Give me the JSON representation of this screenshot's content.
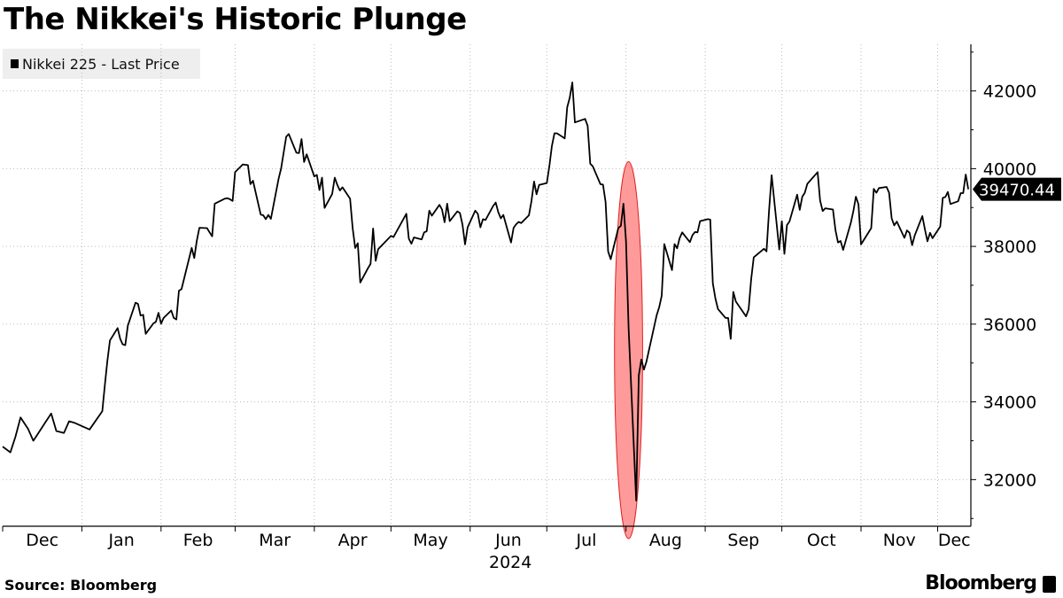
{
  "header": {
    "title": "The Nikkei's Historic Plunge"
  },
  "footer": {
    "source": "Source: Bloomberg",
    "brand": "Bloomberg"
  },
  "colors": {
    "line": "#000000",
    "highlight_fill": "#ff9a9a",
    "highlight_stroke": "#e02020",
    "grid": "#bbbbbb"
  },
  "icons": {
    "brand": "bloomberg-terminal-icon"
  },
  "chart_data": {
    "type": "line",
    "title": "The Nikkei's Historic Plunge",
    "xlabel": "2024",
    "ylabel": "",
    "ylim": [
      30800,
      43200
    ],
    "yticks": [
      32000,
      34000,
      36000,
      38000,
      40000,
      42000
    ],
    "ytick_labels": [
      "32000",
      "34000",
      "36000",
      "38000",
      "40000",
      "42000"
    ],
    "xticks": [
      {
        "label": "Dec",
        "date": "2023-12-01"
      },
      {
        "label": "Jan",
        "date": "2024-01-01"
      },
      {
        "label": "Feb",
        "date": "2024-02-01"
      },
      {
        "label": "Mar",
        "date": "2024-03-01"
      },
      {
        "label": "Apr",
        "date": "2024-04-01"
      },
      {
        "label": "May",
        "date": "2024-05-01"
      },
      {
        "label": "Jun",
        "date": "2024-06-01"
      },
      {
        "label": "Jul",
        "date": "2024-07-01"
      },
      {
        "label": "Aug",
        "date": "2024-08-01"
      },
      {
        "label": "Sep",
        "date": "2024-09-01"
      },
      {
        "label": "Oct",
        "date": "2024-10-01"
      },
      {
        "label": "Nov",
        "date": "2024-11-01"
      },
      {
        "label": "Dec",
        "date": "2024-12-01"
      }
    ],
    "xlim": [
      "2023-12-01",
      "2024-12-14"
    ],
    "grid": true,
    "legend_position": "top-left",
    "series": [
      {
        "name": "Nikkei 225 - Last Price",
        "last_value_label": "39470.44",
        "points": [
          [
            "2023-12-01",
            32850
          ],
          [
            "2023-12-04",
            32700
          ],
          [
            "2023-12-06",
            33100
          ],
          [
            "2023-12-08",
            33600
          ],
          [
            "2023-12-11",
            33300
          ],
          [
            "2023-12-13",
            33000
          ],
          [
            "2023-12-15",
            33200
          ],
          [
            "2023-12-18",
            33500
          ],
          [
            "2023-12-20",
            33700
          ],
          [
            "2023-12-22",
            33250
          ],
          [
            "2023-12-25",
            33200
          ],
          [
            "2023-12-27",
            33500
          ],
          [
            "2023-12-29",
            33464
          ],
          [
            "2024-01-04",
            33290
          ],
          [
            "2024-01-05",
            33380
          ],
          [
            "2024-01-09",
            33760
          ],
          [
            "2024-01-10",
            34440
          ],
          [
            "2024-01-11",
            35050
          ],
          [
            "2024-01-12",
            35580
          ],
          [
            "2024-01-15",
            35900
          ],
          [
            "2024-01-16",
            35620
          ],
          [
            "2024-01-17",
            35480
          ],
          [
            "2024-01-18",
            35460
          ],
          [
            "2024-01-19",
            35960
          ],
          [
            "2024-01-22",
            36550
          ],
          [
            "2024-01-23",
            36520
          ],
          [
            "2024-01-24",
            36220
          ],
          [
            "2024-01-25",
            36240
          ],
          [
            "2024-01-26",
            35750
          ],
          [
            "2024-01-29",
            36020
          ],
          [
            "2024-01-30",
            36060
          ],
          [
            "2024-01-31",
            36290
          ],
          [
            "2024-02-01",
            36010
          ],
          [
            "2024-02-02",
            36160
          ],
          [
            "2024-02-05",
            36350
          ],
          [
            "2024-02-06",
            36160
          ],
          [
            "2024-02-07",
            36120
          ],
          [
            "2024-02-08",
            36860
          ],
          [
            "2024-02-09",
            36900
          ],
          [
            "2024-02-13",
            37960
          ],
          [
            "2024-02-14",
            37700
          ],
          [
            "2024-02-15",
            38150
          ],
          [
            "2024-02-16",
            38480
          ],
          [
            "2024-02-19",
            38470
          ],
          [
            "2024-02-20",
            38360
          ],
          [
            "2024-02-21",
            38260
          ],
          [
            "2024-02-22",
            39100
          ],
          [
            "2024-02-26",
            39230
          ],
          [
            "2024-02-27",
            39240
          ],
          [
            "2024-02-28",
            39210
          ],
          [
            "2024-02-29",
            39170
          ],
          [
            "2024-03-01",
            39910
          ],
          [
            "2024-03-04",
            40110
          ],
          [
            "2024-03-05",
            40100
          ],
          [
            "2024-03-06",
            40090
          ],
          [
            "2024-03-07",
            39600
          ],
          [
            "2024-03-08",
            39690
          ],
          [
            "2024-03-11",
            38820
          ],
          [
            "2024-03-12",
            38800
          ],
          [
            "2024-03-13",
            38700
          ],
          [
            "2024-03-14",
            38810
          ],
          [
            "2024-03-15",
            38710
          ],
          [
            "2024-03-18",
            39740
          ],
          [
            "2024-03-19",
            40000
          ],
          [
            "2024-03-21",
            40820
          ],
          [
            "2024-03-22",
            40890
          ],
          [
            "2024-03-25",
            40410
          ],
          [
            "2024-03-26",
            40400
          ],
          [
            "2024-03-27",
            40760
          ],
          [
            "2024-03-28",
            40170
          ],
          [
            "2024-03-29",
            40370
          ],
          [
            "2024-04-01",
            39800
          ],
          [
            "2024-04-02",
            39840
          ],
          [
            "2024-04-03",
            39450
          ],
          [
            "2024-04-04",
            39770
          ],
          [
            "2024-04-05",
            38990
          ],
          [
            "2024-04-08",
            39350
          ],
          [
            "2024-04-09",
            39770
          ],
          [
            "2024-04-10",
            39580
          ],
          [
            "2024-04-11",
            39440
          ],
          [
            "2024-04-12",
            39520
          ],
          [
            "2024-04-15",
            39230
          ],
          [
            "2024-04-16",
            38470
          ],
          [
            "2024-04-17",
            37960
          ],
          [
            "2024-04-18",
            38080
          ],
          [
            "2024-04-19",
            37070
          ],
          [
            "2024-04-22",
            37440
          ],
          [
            "2024-04-23",
            37550
          ],
          [
            "2024-04-24",
            38460
          ],
          [
            "2024-04-25",
            37630
          ],
          [
            "2024-04-26",
            37930
          ],
          [
            "2024-05-01",
            38270
          ],
          [
            "2024-05-02",
            38240
          ],
          [
            "2024-05-07",
            38840
          ],
          [
            "2024-05-08",
            38200
          ],
          [
            "2024-05-09",
            38070
          ],
          [
            "2024-05-10",
            38230
          ],
          [
            "2024-05-13",
            38180
          ],
          [
            "2024-05-14",
            38360
          ],
          [
            "2024-05-15",
            38390
          ],
          [
            "2024-05-16",
            38920
          ],
          [
            "2024-05-17",
            38790
          ],
          [
            "2024-05-20",
            39070
          ],
          [
            "2024-05-21",
            38950
          ],
          [
            "2024-05-22",
            38620
          ],
          [
            "2024-05-23",
            39100
          ],
          [
            "2024-05-24",
            38650
          ],
          [
            "2024-05-27",
            38900
          ],
          [
            "2024-05-28",
            38860
          ],
          [
            "2024-05-29",
            38560
          ],
          [
            "2024-05-30",
            38050
          ],
          [
            "2024-05-31",
            38490
          ],
          [
            "2024-06-03",
            38920
          ],
          [
            "2024-06-04",
            38840
          ],
          [
            "2024-06-05",
            38490
          ],
          [
            "2024-06-06",
            38700
          ],
          [
            "2024-06-07",
            38680
          ],
          [
            "2024-06-10",
            39040
          ],
          [
            "2024-06-11",
            39130
          ],
          [
            "2024-06-12",
            38880
          ],
          [
            "2024-06-13",
            38720
          ],
          [
            "2024-06-14",
            38810
          ],
          [
            "2024-06-17",
            38100
          ],
          [
            "2024-06-18",
            38480
          ],
          [
            "2024-06-19",
            38570
          ],
          [
            "2024-06-20",
            38630
          ],
          [
            "2024-06-21",
            38600
          ],
          [
            "2024-06-24",
            38800
          ],
          [
            "2024-06-25",
            39170
          ],
          [
            "2024-06-26",
            39670
          ],
          [
            "2024-06-27",
            39340
          ],
          [
            "2024-06-28",
            39580
          ],
          [
            "2024-07-01",
            39630
          ],
          [
            "2024-07-02",
            40070
          ],
          [
            "2024-07-03",
            40580
          ],
          [
            "2024-07-04",
            40910
          ],
          [
            "2024-07-05",
            40910
          ],
          [
            "2024-07-08",
            40780
          ],
          [
            "2024-07-09",
            41580
          ],
          [
            "2024-07-10",
            41830
          ],
          [
            "2024-07-11",
            42220
          ],
          [
            "2024-07-12",
            41190
          ],
          [
            "2024-07-16",
            41280
          ],
          [
            "2024-07-17",
            41100
          ],
          [
            "2024-07-18",
            40130
          ],
          [
            "2024-07-19",
            40060
          ],
          [
            "2024-07-22",
            39600
          ],
          [
            "2024-07-23",
            39590
          ],
          [
            "2024-07-24",
            39150
          ],
          [
            "2024-07-25",
            37870
          ],
          [
            "2024-07-26",
            37670
          ],
          [
            "2024-07-29",
            38470
          ],
          [
            "2024-07-30",
            38530
          ],
          [
            "2024-07-31",
            39100
          ],
          [
            "2024-08-01",
            38130
          ],
          [
            "2024-08-02",
            35910
          ],
          [
            "2024-08-05",
            31458
          ],
          [
            "2024-08-06",
            34680
          ],
          [
            "2024-08-07",
            35090
          ],
          [
            "2024-08-08",
            34830
          ],
          [
            "2024-08-09",
            35030
          ],
          [
            "2024-08-13",
            36230
          ],
          [
            "2024-08-14",
            36440
          ],
          [
            "2024-08-15",
            36730
          ],
          [
            "2024-08-16",
            38060
          ],
          [
            "2024-08-19",
            37390
          ],
          [
            "2024-08-20",
            38060
          ],
          [
            "2024-08-21",
            37950
          ],
          [
            "2024-08-22",
            38210
          ],
          [
            "2024-08-23",
            38360
          ],
          [
            "2024-08-26",
            38110
          ],
          [
            "2024-08-27",
            38290
          ],
          [
            "2024-08-28",
            38370
          ],
          [
            "2024-08-29",
            38360
          ],
          [
            "2024-08-30",
            38650
          ],
          [
            "2024-09-02",
            38700
          ],
          [
            "2024-09-03",
            38690
          ],
          [
            "2024-09-04",
            37050
          ],
          [
            "2024-09-05",
            36660
          ],
          [
            "2024-09-06",
            36390
          ],
          [
            "2024-09-09",
            36160
          ],
          [
            "2024-09-10",
            36160
          ],
          [
            "2024-09-11",
            35620
          ],
          [
            "2024-09-12",
            36830
          ],
          [
            "2024-09-13",
            36580
          ],
          [
            "2024-09-17",
            36200
          ],
          [
            "2024-09-18",
            36380
          ],
          [
            "2024-09-19",
            37160
          ],
          [
            "2024-09-20",
            37720
          ],
          [
            "2024-09-24",
            37940
          ],
          [
            "2024-09-25",
            37870
          ],
          [
            "2024-09-26",
            38930
          ],
          [
            "2024-09-27",
            39830
          ],
          [
            "2024-09-30",
            37920
          ],
          [
            "2024-10-01",
            38650
          ],
          [
            "2024-10-02",
            37810
          ],
          [
            "2024-10-03",
            38550
          ],
          [
            "2024-10-04",
            38640
          ],
          [
            "2024-10-07",
            39330
          ],
          [
            "2024-10-08",
            38940
          ],
          [
            "2024-10-09",
            39280
          ],
          [
            "2024-10-10",
            39380
          ],
          [
            "2024-10-11",
            39610
          ],
          [
            "2024-10-15",
            39910
          ],
          [
            "2024-10-16",
            39180
          ],
          [
            "2024-10-17",
            38910
          ],
          [
            "2024-10-18",
            38980
          ],
          [
            "2024-10-21",
            38950
          ],
          [
            "2024-10-22",
            38410
          ],
          [
            "2024-10-23",
            38100
          ],
          [
            "2024-10-24",
            38140
          ],
          [
            "2024-10-25",
            37910
          ],
          [
            "2024-10-28",
            38610
          ],
          [
            "2024-10-29",
            38900
          ],
          [
            "2024-10-30",
            39280
          ],
          [
            "2024-10-31",
            39080
          ],
          [
            "2024-11-01",
            38050
          ],
          [
            "2024-11-05",
            38470
          ],
          [
            "2024-11-06",
            39480
          ],
          [
            "2024-11-07",
            39380
          ],
          [
            "2024-11-08",
            39500
          ],
          [
            "2024-11-11",
            39530
          ],
          [
            "2024-11-12",
            39380
          ],
          [
            "2024-11-13",
            38720
          ],
          [
            "2024-11-14",
            38540
          ],
          [
            "2024-11-15",
            38640
          ],
          [
            "2024-11-18",
            38220
          ],
          [
            "2024-11-19",
            38410
          ],
          [
            "2024-11-20",
            38350
          ],
          [
            "2024-11-21",
            38030
          ],
          [
            "2024-11-22",
            38280
          ],
          [
            "2024-11-25",
            38780
          ],
          [
            "2024-11-26",
            38440
          ],
          [
            "2024-11-27",
            38130
          ],
          [
            "2024-11-28",
            38350
          ],
          [
            "2024-11-29",
            38210
          ],
          [
            "2024-12-02",
            38510
          ],
          [
            "2024-12-03",
            39250
          ],
          [
            "2024-12-04",
            39270
          ],
          [
            "2024-12-05",
            39400
          ],
          [
            "2024-12-06",
            39090
          ],
          [
            "2024-12-09",
            39160
          ],
          [
            "2024-12-10",
            39370
          ],
          [
            "2024-12-11",
            39370
          ],
          [
            "2024-12-12",
            39850
          ],
          [
            "2024-12-13",
            39470.44
          ]
        ]
      }
    ],
    "annotations": [
      {
        "type": "ellipse",
        "center_date": "2024-08-02",
        "center_value": 35330,
        "half_width_days": 5.5,
        "half_height_value": 4850
      }
    ]
  }
}
